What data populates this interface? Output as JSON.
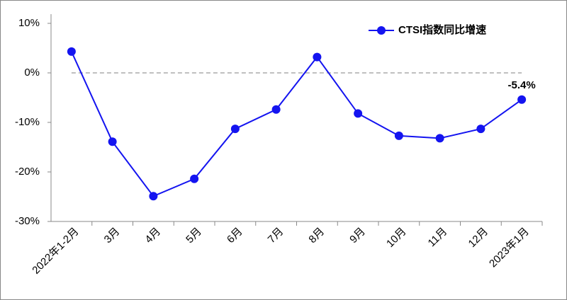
{
  "chart_data": {
    "type": "line",
    "categories": [
      "2022年1-2月",
      "3月",
      "4月",
      "5月",
      "6月",
      "7月",
      "8月",
      "9月",
      "10月",
      "11月",
      "12月",
      "2023年1月"
    ],
    "series": [
      {
        "name": "CTSI指数同比增速",
        "color": "#1414f0",
        "values": [
          4.3,
          -13.9,
          -24.9,
          -21.4,
          -11.3,
          -7.4,
          3.2,
          -8.2,
          -12.7,
          -13.2,
          -11.3,
          -5.4
        ],
        "value_labels": [
          null,
          null,
          null,
          null,
          null,
          null,
          null,
          null,
          null,
          null,
          null,
          "-5.4%"
        ]
      }
    ],
    "ylim": [
      -30,
      10
    ],
    "yticks": [
      {
        "value": -30,
        "label": "-30%"
      },
      {
        "value": -20,
        "label": "-20%"
      },
      {
        "value": -10,
        "label": "-10%"
      },
      {
        "value": 0,
        "label": "0%"
      },
      {
        "value": 10,
        "label": "10%"
      }
    ],
    "legend": "top-right"
  }
}
